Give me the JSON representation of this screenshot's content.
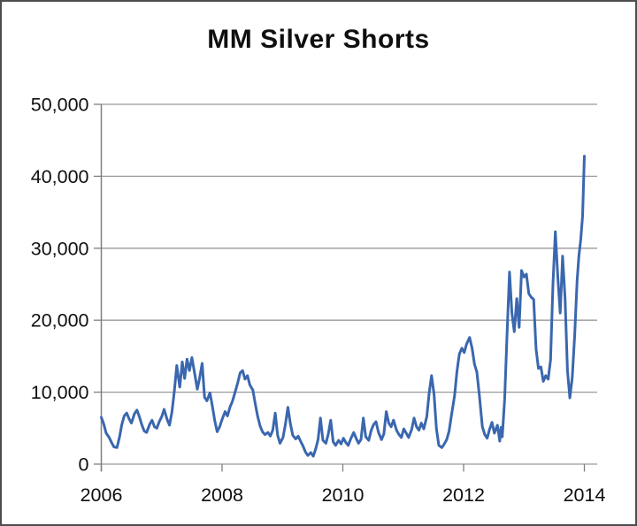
{
  "title": "MM Silver Shorts",
  "chart_data": {
    "type": "line",
    "title": "MM Silver Shorts",
    "xlabel": "",
    "ylabel": "",
    "legend": "none",
    "grid": "horizontal-only",
    "x_axis": {
      "min": 2006,
      "max": 2014.2,
      "tick_years": [
        2006,
        2008,
        2010,
        2012,
        2014
      ],
      "tick_labels": [
        "2006",
        "2008",
        "2010",
        "2012",
        "2014"
      ]
    },
    "y_axis": {
      "min": 0,
      "max": 50000,
      "tick_step": 10000,
      "tick_values": [
        0,
        10000,
        20000,
        30000,
        40000,
        50000
      ],
      "tick_labels": [
        "0",
        "10,000",
        "20,000",
        "30,000",
        "40,000",
        "50,000"
      ]
    },
    "series": [
      {
        "name": "MM Silver Shorts",
        "color": "#3A67AE",
        "points": [
          [
            2006.0,
            6500
          ],
          [
            2006.04,
            5600
          ],
          [
            2006.08,
            4300
          ],
          [
            2006.13,
            3700
          ],
          [
            2006.17,
            3000
          ],
          [
            2006.21,
            2400
          ],
          [
            2006.26,
            2300
          ],
          [
            2006.3,
            3700
          ],
          [
            2006.34,
            5500
          ],
          [
            2006.38,
            6700
          ],
          [
            2006.42,
            7100
          ],
          [
            2006.46,
            6300
          ],
          [
            2006.5,
            5700
          ],
          [
            2006.55,
            7000
          ],
          [
            2006.59,
            7500
          ],
          [
            2006.63,
            6600
          ],
          [
            2006.67,
            5500
          ],
          [
            2006.71,
            4600
          ],
          [
            2006.75,
            4400
          ],
          [
            2006.8,
            5500
          ],
          [
            2006.84,
            6100
          ],
          [
            2006.88,
            5200
          ],
          [
            2006.92,
            5000
          ],
          [
            2006.96,
            5900
          ],
          [
            2007.0,
            6600
          ],
          [
            2007.04,
            7600
          ],
          [
            2007.09,
            6200
          ],
          [
            2007.13,
            5400
          ],
          [
            2007.17,
            7300
          ],
          [
            2007.21,
            10200
          ],
          [
            2007.25,
            13700
          ],
          [
            2007.3,
            10700
          ],
          [
            2007.34,
            14200
          ],
          [
            2007.38,
            11900
          ],
          [
            2007.42,
            14600
          ],
          [
            2007.46,
            13000
          ],
          [
            2007.5,
            14800
          ],
          [
            2007.55,
            12400
          ],
          [
            2007.59,
            10400
          ],
          [
            2007.63,
            12000
          ],
          [
            2007.67,
            14000
          ],
          [
            2007.71,
            9300
          ],
          [
            2007.75,
            8800
          ],
          [
            2007.8,
            9900
          ],
          [
            2007.84,
            8000
          ],
          [
            2007.88,
            6000
          ],
          [
            2007.92,
            4500
          ],
          [
            2007.96,
            5200
          ],
          [
            2008.0,
            6200
          ],
          [
            2008.05,
            7300
          ],
          [
            2008.09,
            6700
          ],
          [
            2008.13,
            7900
          ],
          [
            2008.17,
            8700
          ],
          [
            2008.21,
            9800
          ],
          [
            2008.26,
            11300
          ],
          [
            2008.3,
            12700
          ],
          [
            2008.34,
            13000
          ],
          [
            2008.38,
            11800
          ],
          [
            2008.42,
            12300
          ],
          [
            2008.46,
            11000
          ],
          [
            2008.51,
            10300
          ],
          [
            2008.55,
            8400
          ],
          [
            2008.59,
            6600
          ],
          [
            2008.63,
            5300
          ],
          [
            2008.67,
            4500
          ],
          [
            2008.71,
            4100
          ],
          [
            2008.76,
            4400
          ],
          [
            2008.8,
            3900
          ],
          [
            2008.84,
            4700
          ],
          [
            2008.88,
            7100
          ],
          [
            2008.92,
            4000
          ],
          [
            2008.96,
            2900
          ],
          [
            2009.01,
            3700
          ],
          [
            2009.05,
            5600
          ],
          [
            2009.09,
            7900
          ],
          [
            2009.13,
            5700
          ],
          [
            2009.17,
            4000
          ],
          [
            2009.22,
            3500
          ],
          [
            2009.26,
            3900
          ],
          [
            2009.3,
            3200
          ],
          [
            2009.34,
            2500
          ],
          [
            2009.38,
            1700
          ],
          [
            2009.42,
            1200
          ],
          [
            2009.47,
            1600
          ],
          [
            2009.51,
            1100
          ],
          [
            2009.55,
            2100
          ],
          [
            2009.59,
            3400
          ],
          [
            2009.63,
            6400
          ],
          [
            2009.67,
            3300
          ],
          [
            2009.72,
            2900
          ],
          [
            2009.76,
            4200
          ],
          [
            2009.8,
            6100
          ],
          [
            2009.84,
            3100
          ],
          [
            2009.88,
            2600
          ],
          [
            2009.93,
            3300
          ],
          [
            2009.97,
            2800
          ],
          [
            2010.01,
            3600
          ],
          [
            2010.05,
            3000
          ],
          [
            2010.09,
            2600
          ],
          [
            2010.13,
            3500
          ],
          [
            2010.18,
            4400
          ],
          [
            2010.22,
            3600
          ],
          [
            2010.26,
            2900
          ],
          [
            2010.3,
            3400
          ],
          [
            2010.34,
            6400
          ],
          [
            2010.38,
            3800
          ],
          [
            2010.43,
            3300
          ],
          [
            2010.47,
            4700
          ],
          [
            2010.51,
            5500
          ],
          [
            2010.55,
            5900
          ],
          [
            2010.59,
            4400
          ],
          [
            2010.64,
            3400
          ],
          [
            2010.68,
            4200
          ],
          [
            2010.72,
            7300
          ],
          [
            2010.76,
            5700
          ],
          [
            2010.8,
            5200
          ],
          [
            2010.84,
            6100
          ],
          [
            2010.89,
            4700
          ],
          [
            2010.93,
            4100
          ],
          [
            2010.97,
            3700
          ],
          [
            2011.01,
            4900
          ],
          [
            2011.05,
            4300
          ],
          [
            2011.09,
            3700
          ],
          [
            2011.14,
            4800
          ],
          [
            2011.18,
            6400
          ],
          [
            2011.22,
            5200
          ],
          [
            2011.26,
            4700
          ],
          [
            2011.3,
            5700
          ],
          [
            2011.34,
            4900
          ],
          [
            2011.39,
            6600
          ],
          [
            2011.43,
            9900
          ],
          [
            2011.47,
            12300
          ],
          [
            2011.51,
            9700
          ],
          [
            2011.55,
            4900
          ],
          [
            2011.59,
            2600
          ],
          [
            2011.64,
            2300
          ],
          [
            2011.68,
            2800
          ],
          [
            2011.72,
            3400
          ],
          [
            2011.76,
            4600
          ],
          [
            2011.8,
            6800
          ],
          [
            2011.85,
            9500
          ],
          [
            2011.89,
            12900
          ],
          [
            2011.93,
            15300
          ],
          [
            2011.97,
            16100
          ],
          [
            2012.01,
            15500
          ],
          [
            2012.05,
            16700
          ],
          [
            2012.1,
            17600
          ],
          [
            2012.14,
            16100
          ],
          [
            2012.18,
            13900
          ],
          [
            2012.22,
            12800
          ],
          [
            2012.26,
            9700
          ],
          [
            2012.31,
            5200
          ],
          [
            2012.35,
            4100
          ],
          [
            2012.39,
            3600
          ],
          [
            2012.43,
            4800
          ],
          [
            2012.47,
            5800
          ],
          [
            2012.51,
            4300
          ],
          [
            2012.56,
            5400
          ],
          [
            2012.6,
            3200
          ],
          [
            2012.62,
            5100
          ],
          [
            2012.64,
            3800
          ],
          [
            2012.68,
            9000
          ],
          [
            2012.72,
            18000
          ],
          [
            2012.76,
            26700
          ],
          [
            2012.8,
            21000
          ],
          [
            2012.84,
            18400
          ],
          [
            2012.88,
            23000
          ],
          [
            2012.92,
            19000
          ],
          [
            2012.96,
            26900
          ],
          [
            2013.0,
            26000
          ],
          [
            2013.04,
            26400
          ],
          [
            2013.08,
            23700
          ],
          [
            2013.12,
            23200
          ],
          [
            2013.16,
            22900
          ],
          [
            2013.2,
            16000
          ],
          [
            2013.24,
            13300
          ],
          [
            2013.28,
            13500
          ],
          [
            2013.32,
            11500
          ],
          [
            2013.36,
            12300
          ],
          [
            2013.4,
            11800
          ],
          [
            2013.44,
            14500
          ],
          [
            2013.48,
            25000
          ],
          [
            2013.52,
            32300
          ],
          [
            2013.56,
            26000
          ],
          [
            2013.6,
            21000
          ],
          [
            2013.64,
            28900
          ],
          [
            2013.68,
            23000
          ],
          [
            2013.72,
            13000
          ],
          [
            2013.76,
            9200
          ],
          [
            2013.8,
            12000
          ],
          [
            2013.84,
            18000
          ],
          [
            2013.88,
            25500
          ],
          [
            2013.91,
            29000
          ],
          [
            2013.94,
            31200
          ],
          [
            2013.97,
            34500
          ],
          [
            2014.0,
            42800
          ]
        ]
      }
    ]
  },
  "style": {
    "line_color": "#3A67AE",
    "grid_color": "#9A9A9A",
    "axis_color": "#808080",
    "text_color": "#0F0F0F",
    "frame_border_color": "#4D4D4F",
    "background": "#FFFFFF"
  }
}
